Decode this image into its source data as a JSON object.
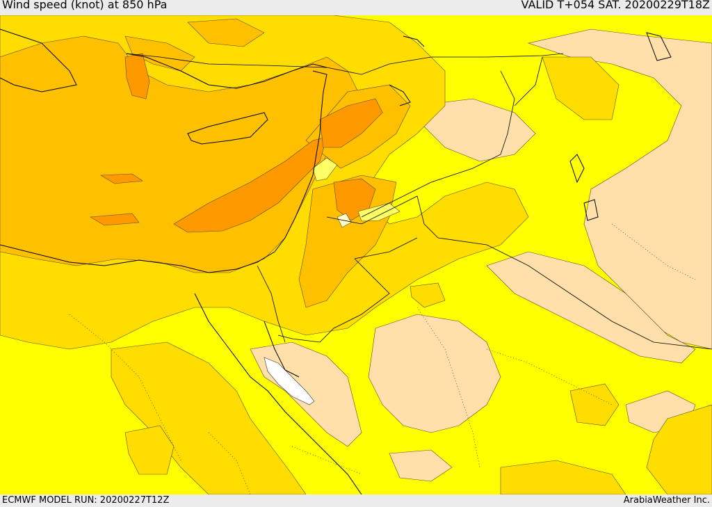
{
  "header": {
    "title": "Wind speed (knot) at 850 hPa",
    "valid": "VALID T+054 SAT. 20200229T18Z"
  },
  "footer": {
    "model_run": "ECMWF MODEL RUN: 20200227T12Z",
    "provider": "ArabiaWeather Inc."
  },
  "palette": {
    "level_0": "#ffffff",
    "level_1": "#ffdfaa",
    "level_2": "#ffff00",
    "level_3": "#ffdd00",
    "level_4": "#ffc000",
    "level_5": "#ffa500",
    "level_6": "#ff9900",
    "border": "#000000"
  }
}
